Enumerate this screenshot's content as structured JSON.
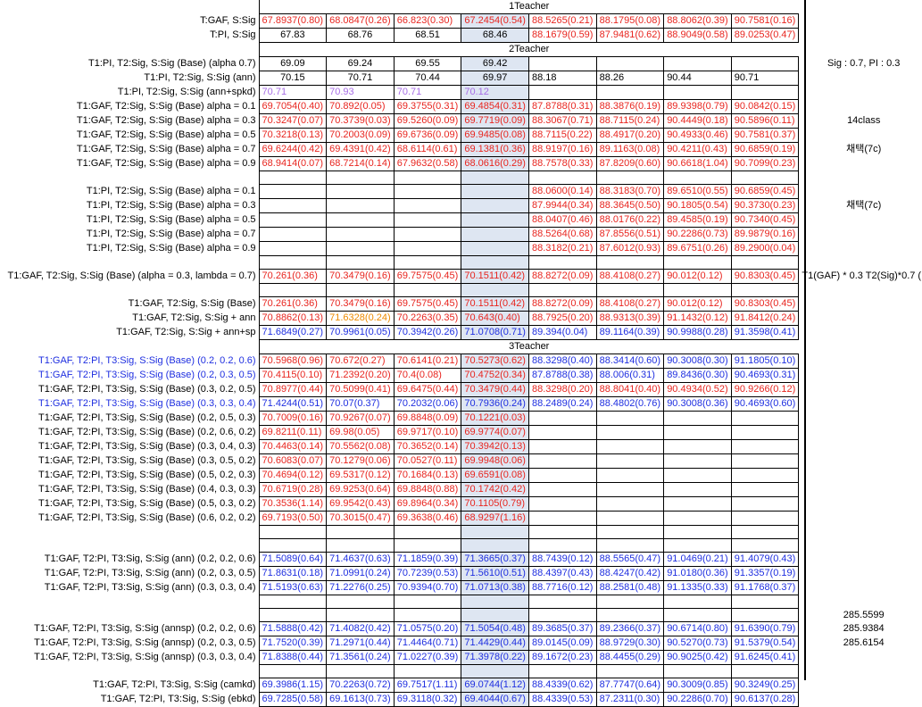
{
  "colors": {
    "red": "#e8251f",
    "blue": "#1f2fe0",
    "purple": "#a86ee6",
    "orange": "#ed8a00",
    "highlight": "#dee6f2"
  },
  "sections": {
    "one": "1Teacher",
    "two": "2Teacher",
    "three": "3Teacher"
  },
  "notes": {
    "sig_pi": "Sig : 0.7, PI : 0.3",
    "class14": "14class",
    "chosen1": "채택(7c)",
    "chosen2": "채택(7c)",
    "formula": "T1(GAF) * 0.3 T2(Sig)*0.7 (",
    "v1": "285.5599",
    "v2": "285.9384",
    "v3": "285.6154"
  },
  "rows": [
    {
      "label": "T:GAF, S:Sig",
      "cells": [
        "67.8937(0.80)",
        "68.0847(0.26)",
        "66.823(0.30)",
        "67.2454(0.54)",
        "88.5265(0.21)",
        "88.1795(0.08)",
        "88.8062(0.39)",
        "90.7581(0.16)"
      ],
      "color": "red"
    },
    {
      "label": "T:PI, S:Sig",
      "cells": [
        "67.83",
        "68.76",
        "68.51",
        "68.46",
        "88.1679(0.59)",
        "87.9481(0.62)",
        "88.9049(0.58)",
        "89.0253(0.47)"
      ],
      "colorsplit": 4
    },
    {
      "label": "T1:PI, T2:Sig, S:Sig (Base) (alpha 0.7)",
      "cells": [
        "69.09",
        "69.24",
        "69.55",
        "69.42",
        "",
        "",
        "",
        ""
      ]
    },
    {
      "label": "T1:PI, T2:Sig, S:Sig (ann)",
      "cells": [
        "70.15",
        "70.71",
        "70.44",
        "69.97",
        "88.18",
        "88.26",
        "90.44",
        "90.71"
      ]
    },
    {
      "label": "T1:PI, T2:Sig, S:Sig (ann+spkd)",
      "cells": [
        "70.71",
        "70.93",
        "70.71",
        "70.12",
        "",
        "",
        "",
        ""
      ],
      "color": "purple"
    },
    {
      "label": "T1:GAF, T2:Sig, S:Sig (Base) alpha = 0.1",
      "cells": [
        "69.7054(0.40)",
        "70.892(0.05)",
        "69.3755(0.31)",
        "69.4854(0.31)",
        "87.8788(0.31)",
        "88.3876(0.19)",
        "89.9398(0.79)",
        "90.0842(0.15)"
      ],
      "color": "red"
    },
    {
      "label": "T1:GAF, T2:Sig, S:Sig (Base) alpha = 0.3",
      "cells": [
        "70.3247(0.07)",
        "70.3739(0.03)",
        "69.5260(0.09)",
        "69.7719(0.09)",
        "88.3067(0.71)",
        "88.7115(0.24)",
        "90.4449(0.18)",
        "90.5896(0.11)"
      ],
      "color": "red"
    },
    {
      "label": "T1:GAF, T2:Sig, S:Sig (Base) alpha = 0.5",
      "cells": [
        "70.3218(0.13)",
        "70.2003(0.09)",
        "69.6736(0.09)",
        "69.9485(0.08)",
        "88.7115(0.22)",
        "88.4917(0.20)",
        "90.4933(0.46)",
        "90.7581(0.37)"
      ],
      "color": "red"
    },
    {
      "label": "T1:GAF, T2:Sig, S:Sig (Base) alpha = 0.7",
      "cells": [
        "69.6244(0.42)",
        "69.4391(0.42)",
        "68.6114(0.61)",
        "69.1381(0.36)",
        "88.9197(0.16)",
        "89.1163(0.08)",
        "90.4211(0.43)",
        "90.6859(0.19)"
      ],
      "color": "red"
    },
    {
      "label": "T1:GAF, T2:Sig, S:Sig (Base) alpha = 0.9",
      "cells": [
        "68.9414(0.07)",
        "68.7214(0.14)",
        "67.9632(0.58)",
        "68.0616(0.29)",
        "88.7578(0.33)",
        "87.8209(0.60)",
        "90.6618(1.04)",
        "90.7099(0.23)"
      ],
      "color": "red"
    },
    {
      "label": "",
      "cells": [
        "",
        "",
        "",
        "",
        "",
        "",
        "",
        ""
      ]
    },
    {
      "label": "T1:PI, T2:Sig, S:Sig (Base) alpha = 0.1",
      "cells": [
        "",
        "",
        "",
        "",
        "88.0600(0.14)",
        "88.3183(0.70)",
        "89.6510(0.55)",
        "90.6859(0.45)"
      ],
      "color": "red"
    },
    {
      "label": "T1:PI, T2:Sig, S:Sig (Base) alpha = 0.3",
      "cells": [
        "",
        "",
        "",
        "",
        "87.9944(0.34)",
        "88.3645(0.50)",
        "90.1805(0.54)",
        "90.3730(0.23)"
      ],
      "color": "red"
    },
    {
      "label": "T1:PI, T2:Sig, S:Sig (Base) alpha = 0.5",
      "cells": [
        "",
        "",
        "",
        "",
        "88.0407(0.46)",
        "88.0176(0.22)",
        "89.4585(0.19)",
        "90.7340(0.45)"
      ],
      "color": "red"
    },
    {
      "label": "T1:PI, T2:Sig, S:Sig (Base) alpha = 0.7",
      "cells": [
        "",
        "",
        "",
        "",
        "88.5264(0.68)",
        "87.8556(0.51)",
        "90.2286(0.73)",
        "89.9879(0.16)"
      ],
      "color": "red"
    },
    {
      "label": "T1:PI, T2:Sig, S:Sig (Base) alpha = 0.9",
      "cells": [
        "",
        "",
        "",
        "",
        "88.3182(0.21)",
        "87.6012(0.93)",
        "89.6751(0.26)",
        "89.2900(0.04)"
      ],
      "color": "red"
    },
    {
      "label": "",
      "cells": [
        "",
        "",
        "",
        "",
        "",
        "",
        "",
        ""
      ]
    },
    {
      "label": "T1:GAF, T2:Sig, S:Sig (Base) (alpha = 0.3, lambda = 0.7)",
      "cells": [
        "70.261(0.36)",
        "70.3479(0.16)",
        "69.7575(0.45)",
        "70.1511(0.42)",
        "88.8272(0.09)",
        "88.4108(0.27)",
        "90.012(0.12)",
        "90.8303(0.45)"
      ],
      "color": "red"
    },
    {
      "label": "",
      "cells": [
        "",
        "",
        "",
        "",
        "",
        "",
        "",
        ""
      ]
    },
    {
      "label": "T1:GAF, T2:Sig, S:Sig (Base)",
      "cells": [
        "70.261(0.36)",
        "70.3479(0.16)",
        "69.7575(0.45)",
        "70.1511(0.42)",
        "88.8272(0.09)",
        "88.4108(0.27)",
        "90.012(0.12)",
        "90.8303(0.45)"
      ],
      "color": "red"
    },
    {
      "label": "T1:GAF, T2:Sig, S:Sig + ann",
      "cells": [
        "70.8862(0.13)",
        "71.6328(0.24)",
        "70.2263(0.35)",
        "70.643(0.40)",
        "88.7925(0.20)",
        "88.9313(0.39)",
        "91.1432(0.12)",
        "91.8412(0.24)"
      ],
      "colors": [
        "red",
        "orange",
        "red",
        "red",
        "red",
        "red",
        "red",
        "red"
      ]
    },
    {
      "label": "T1:GAF, T2:Sig, S:Sig + ann+sp",
      "cells": [
        "71.6849(0.27)",
        "70.9961(0.05)",
        "70.3942(0.26)",
        "71.0708(0.71)",
        "89.394(0.04)",
        "89.1164(0.39)",
        "90.9988(0.28)",
        "91.3598(0.41)"
      ],
      "color": "blue"
    },
    {
      "label": "T1:GAF, T2:PI, T3:Sig, S:Sig (Base) (0.2, 0.2, 0.6)",
      "cells": [
        "70.5968(0.96)",
        "70.672(0.27)",
        "70.6141(0.21)",
        "70.5273(0.62)",
        "88.3298(0.40)",
        "88.3414(0.60)",
        "90.3008(0.30)",
        "91.1805(0.10)"
      ],
      "colors": [
        "red",
        "red",
        "red",
        "red",
        "blue",
        "blue",
        "blue",
        "blue"
      ],
      "labelColor": "blue"
    },
    {
      "label": "T1:GAF, T2:PI, T3:Sig, S:Sig (Base) (0.2, 0.3, 0.5)",
      "cells": [
        "70.4115(0.10)",
        "71.2392(0.20)",
        "70.4(0.08)",
        "70.4752(0.34)",
        "87.8788(0.38)",
        "88.006(0.31)",
        "89.8436(0.30)",
        "90.4693(0.31)"
      ],
      "colors": [
        "red",
        "red",
        "red",
        "red",
        "blue",
        "blue",
        "blue",
        "blue"
      ],
      "labelColor": "blue"
    },
    {
      "label": "T1:GAF, T2:PI, T3:Sig, S:Sig (Base) (0.3, 0.2, 0.5)",
      "cells": [
        "70.8977(0.44)",
        "70.5099(0.41)",
        "69.6475(0.44)",
        "70.3479(0.44)",
        "88.3298(0.20)",
        "88.8041(0.40)",
        "90.4934(0.52)",
        "90.9266(0.12)"
      ],
      "color": "red"
    },
    {
      "label": "T1:GAF, T2:PI, T3:Sig, S:Sig (Base) (0.3, 0.3, 0.4)",
      "cells": [
        "71.4244(0.51)",
        "70.07(0.37)",
        "70.2032(0.06)",
        "70.7936(0.24)",
        "88.2489(0.24)",
        "88.4802(0.76)",
        "90.3008(0.36)",
        "90.4693(0.60)"
      ],
      "color": "blue",
      "labelColor": "blue"
    },
    {
      "label": "T1:GAF, T2:PI, T3:Sig, S:Sig (Base) (0.2, 0.5, 0.3)",
      "cells": [
        "70.7009(0.16)",
        "70.9267(0.07)",
        "69.8848(0.09)",
        "70.1221(0.03)",
        "",
        "",
        "",
        ""
      ],
      "color": "red"
    },
    {
      "label": "T1:GAF, T2:PI, T3:Sig, S:Sig (Base) (0.2, 0.6, 0.2)",
      "cells": [
        "69.8211(0.11)",
        "69.98(0.05)",
        "69.9717(0.10)",
        "69.9774(0.07)",
        "",
        "",
        "",
        ""
      ],
      "color": "red"
    },
    {
      "label": "T1:GAF, T2:PI, T3:Sig, S:Sig (Base) (0.3, 0.4, 0.3)",
      "cells": [
        "70.4463(0.14)",
        "70.5562(0.08)",
        "70.3652(0.14)",
        "70.3942(0.13)",
        "",
        "",
        "",
        ""
      ],
      "color": "red"
    },
    {
      "label": "T1:GAF, T2:PI, T3:Sig, S:Sig (Base) (0.3, 0.5, 0.2)",
      "cells": [
        "70.6083(0.07)",
        "70.1279(0.06)",
        "70.0527(0.11)",
        "69.9948(0.06)",
        "",
        "",
        "",
        ""
      ],
      "color": "red"
    },
    {
      "label": "T1:GAF, T2:PI, T3:Sig, S:Sig (Base) (0.5, 0.2, 0.3)",
      "cells": [
        "70.4694(0.12)",
        "69.5317(0.12)",
        "70.1684(0.13)",
        "69.6591(0.08)",
        "",
        "",
        "",
        ""
      ],
      "color": "red"
    },
    {
      "label": "T1:GAF, T2:PI, T3:Sig, S:Sig (Base) (0.4, 0.3, 0.3)",
      "cells": [
        "70.6719(0.28)",
        "69.9253(0.64)",
        "69.8848(0.88)",
        "70.1742(0.42)",
        "",
        "",
        "",
        ""
      ],
      "color": "red"
    },
    {
      "label": "T1:GAF, T2:PI, T3:Sig, S:Sig (Base) (0.5, 0.3, 0.2)",
      "cells": [
        "70.3536(1.14)",
        "69.9542(0.43)",
        "69.8964(0.34)",
        "70.1105(0.79)",
        "",
        "",
        "",
        ""
      ],
      "color": "red"
    },
    {
      "label": "T1:GAF, T2:PI, T3:Sig, S:Sig (Base) (0.6, 0.2, 0.2)",
      "cells": [
        "69.7193(0.50)",
        "70.3015(0.47)",
        "69.3638(0.46)",
        "68.9297(1.16)",
        "",
        "",
        "",
        ""
      ],
      "color": "red"
    },
    {
      "label": "",
      "cells": [
        "",
        "",
        "",
        "",
        "",
        "",
        "",
        ""
      ]
    },
    {
      "label": "",
      "cells": [
        "",
        "",
        "",
        "",
        "",
        "",
        "",
        ""
      ]
    },
    {
      "label": "T1:GAF, T2:PI, T3:Sig, S:Sig (ann) (0.2, 0.2, 0.6)",
      "cells": [
        "71.5089(0.64)",
        "71.4637(0.63)",
        "71.1859(0.39)",
        "71.3665(0.37)",
        "88.7439(0.12)",
        "88.5565(0.47)",
        "91.0469(0.21)",
        "91.4079(0.43)"
      ],
      "color": "blue"
    },
    {
      "label": "T1:GAF, T2:PI, T3:Sig, S:Sig (ann) (0.2, 0.3, 0.5)",
      "cells": [
        "71.8631(0.18)",
        "71.0991(0.24)",
        "70.7239(0.53)",
        "71.5610(0.51)",
        "88.4397(0.43)",
        "88.4247(0.42)",
        "91.0180(0.36)",
        "91.3357(0.19)"
      ],
      "color": "blue"
    },
    {
      "label": "T1:GAF, T2:PI, T3:Sig, S:Sig (ann) (0.3, 0.3, 0.4)",
      "cells": [
        "71.5193(0.63)",
        "71.2276(0.25)",
        "70.9394(0.70)",
        "71.0713(0.38)",
        "88.7716(0.12)",
        "88.2581(0.48)",
        "91.1335(0.33)",
        "91.1768(0.37)"
      ],
      "color": "blue"
    },
    {
      "label": "",
      "cells": [
        "",
        "",
        "",
        "",
        "",
        "",
        "",
        ""
      ]
    },
    {
      "label": "",
      "cells": [
        "",
        "",
        "",
        "",
        "",
        "",
        "",
        ""
      ]
    },
    {
      "label": "T1:GAF, T2:PI, T3:Sig, S:Sig (annsp) (0.2, 0.2, 0.6)",
      "cells": [
        "71.5888(0.42)",
        "71.4082(0.42)",
        "71.0575(0.20)",
        "71.5054(0.48)",
        "89.3685(0.37)",
        "89.2366(0.37)",
        "90.6714(0.80)",
        "91.6390(0.79)"
      ],
      "color": "blue"
    },
    {
      "label": "T1:GAF, T2:PI, T3:Sig, S:Sig (annsp) (0.2, 0.3, 0.5)",
      "cells": [
        "71.7520(0.39)",
        "71.2971(0.44)",
        "71.4464(0.71)",
        "71.4429(0.44)",
        "89.0145(0.09)",
        "88.9729(0.30)",
        "90.5270(0.73)",
        "91.5379(0.54)"
      ],
      "color": "blue"
    },
    {
      "label": "T1:GAF, T2:PI, T3:Sig, S:Sig (annsp) (0.3, 0.3, 0.4)",
      "cells": [
        "71.8388(0.44)",
        "71.3561(0.24)",
        "71.0227(0.39)",
        "71.3978(0.22)",
        "89.1672(0.23)",
        "88.4455(0.29)",
        "90.9025(0.42)",
        "91.6245(0.41)"
      ],
      "color": "blue"
    },
    {
      "label": "",
      "cells": [
        "",
        "",
        "",
        "",
        "",
        "",
        "",
        ""
      ]
    },
    {
      "label": "T1:GAF, T2:PI, T3:Sig, S:Sig (camkd)",
      "cells": [
        "69.3986(1.15)",
        "70.2263(0.72)",
        "69.7517(1.11)",
        "69.0744(1.12)",
        "88.4339(0.62)",
        "87.7747(0.64)",
        "90.3009(0.85)",
        "90.3249(0.25)"
      ],
      "color": "blue"
    },
    {
      "label": "T1:GAF, T2:PI, T3:Sig, S:Sig (ebkd)",
      "cells": [
        "69.7285(0.58)",
        "69.1613(0.73)",
        "69.3118(0.32)",
        "69.4044(0.67)",
        "88.4339(0.53)",
        "87.2311(0.30)",
        "90.2286(0.70)",
        "90.6137(0.28)"
      ],
      "color": "blue"
    }
  ]
}
